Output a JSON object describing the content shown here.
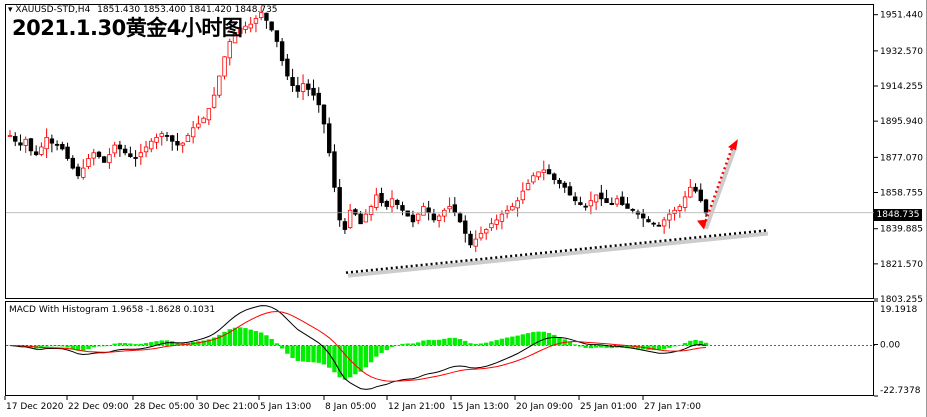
{
  "chart_title": "2021.1.30黄金4小时图",
  "symbol_header": "XAUUSD-STD,H4",
  "ohlc_header": "1851.430 1853.400 1841.420 1848.735",
  "last_price_label": "1848.735",
  "indicator_header": "MACD With Histogram 1.9658 -1.8628 0.1031",
  "colors": {
    "bull": "#ff0000",
    "bear": "#000000",
    "histogram": "#00ee00",
    "signal": "#ff0000",
    "macd": "#000000",
    "trendline": "#000000",
    "projection": "#ff0000"
  },
  "chart_data": [
    {
      "type": "candlestick",
      "symbol": "XAUUSD-STD",
      "timeframe": "H4",
      "ylim": [
        1803.255,
        1957.0
      ],
      "y_ticks": [
        "1951.440",
        "1932.570",
        "1914.255",
        "1895.940",
        "1877.070",
        "1858.755",
        "1839.885",
        "1821.570",
        "1803.255"
      ],
      "x_ticks": [
        "17 Dec 2020",
        "22 Dec 09:00",
        "28 Dec 05:00",
        "30 Dec 21:00",
        "5 Jan 13:00",
        "8 Jan 05:00",
        "12 Jan 21:00",
        "15 Jan 13:00",
        "20 Jan 09:00",
        "25 Jan 01:00",
        "27 Jan 17:00"
      ],
      "last_price": 1848.735,
      "close_path": [
        1889,
        1886,
        1884,
        1887,
        1881,
        1879,
        1883,
        1888,
        1885,
        1884,
        1882,
        1877,
        1872,
        1868,
        1872,
        1877,
        1880,
        1878,
        1875,
        1879,
        1884,
        1882,
        1880,
        1878,
        1877,
        1880,
        1883,
        1886,
        1888,
        1890,
        1889,
        1886,
        1884,
        1885,
        1889,
        1893,
        1895,
        1898,
        1903,
        1910,
        1920,
        1930,
        1938,
        1942,
        1945,
        1946,
        1947,
        1950,
        1953,
        1949,
        1944,
        1938,
        1928,
        1920,
        1915,
        1912,
        1916,
        1913,
        1910,
        1905,
        1895,
        1880,
        1862,
        1845,
        1840,
        1850,
        1848,
        1843,
        1848,
        1852,
        1858,
        1854,
        1852,
        1856,
        1853,
        1850,
        1847,
        1844,
        1848,
        1852,
        1849,
        1845,
        1847,
        1850,
        1852,
        1849,
        1844,
        1838,
        1832,
        1835,
        1838,
        1840,
        1843,
        1845,
        1848,
        1850,
        1852,
        1855,
        1860,
        1864,
        1868,
        1870,
        1871,
        1869,
        1866,
        1864,
        1862,
        1858,
        1855,
        1853,
        1852,
        1855,
        1858,
        1856,
        1854,
        1853,
        1856,
        1853,
        1851,
        1850,
        1848,
        1846,
        1844,
        1843,
        1842,
        1845,
        1848,
        1850,
        1852,
        1857,
        1862,
        1860,
        1855,
        1848.7
      ]
    },
    {
      "type": "macd-histogram",
      "title": "MACD With Histogram",
      "macd": 1.9658,
      "signal": -1.8628,
      "histogram": 0.1031,
      "y_ticks": [
        "19.1918",
        "0.00",
        "-22.7378"
      ],
      "ylim": [
        -22.7378,
        19.1918
      ]
    }
  ]
}
